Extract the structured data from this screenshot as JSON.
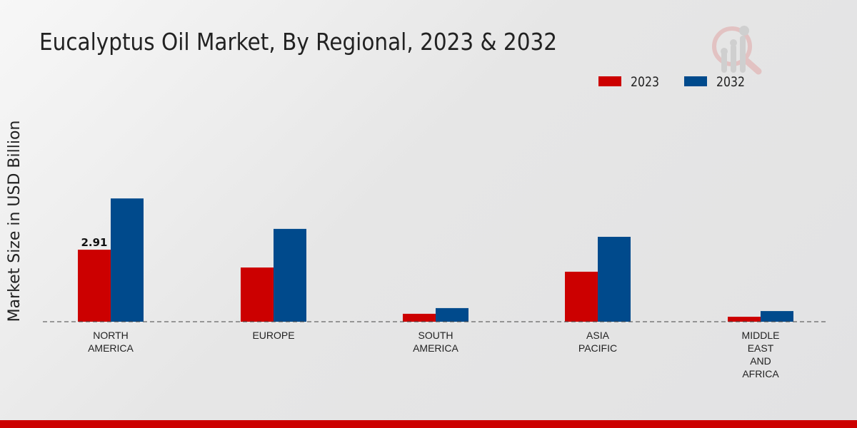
{
  "chart_data": {
    "type": "bar",
    "title": "Eucalyptus Oil Market, By Regional, 2023 & 2032",
    "xlabel": "",
    "ylabel": "Market Size in USD Billion",
    "categories": [
      [
        "NORTH",
        "AMERICA"
      ],
      [
        "EUROPE"
      ],
      [
        "SOUTH",
        "AMERICA"
      ],
      [
        "ASIA",
        "PACIFIC"
      ],
      [
        "MIDDLE",
        "EAST",
        "AND",
        "AFRICA"
      ]
    ],
    "series": [
      {
        "name": "2023",
        "color": "#cc0000",
        "values": [
          2.91,
          2.19,
          0.32,
          2.02,
          0.2
        ]
      },
      {
        "name": "2032",
        "color": "#004a8c",
        "values": [
          4.98,
          3.75,
          0.55,
          3.43,
          0.43
        ]
      }
    ],
    "data_labels": [
      {
        "series": 0,
        "index": 0,
        "text": "2.91"
      }
    ],
    "ylim": [
      0,
      12.5
    ],
    "grid": false,
    "legend_position": "top-right"
  }
}
